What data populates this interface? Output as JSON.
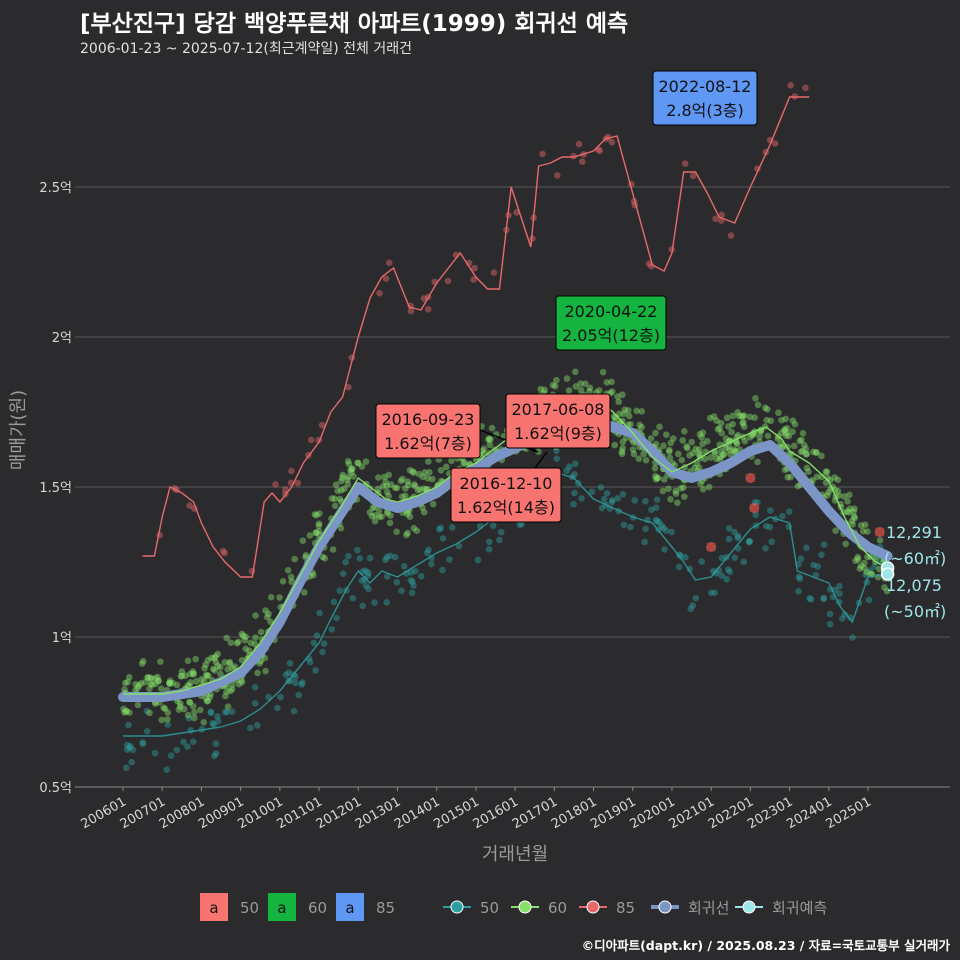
{
  "title": "[부산진구] 당감 백양푸른채 아파트(1999) 회귀선 예측",
  "subtitle": "2006-01-23 ~ 2025-07-12(최근계약일) 전체 거래건",
  "caption": "©디아파트(dapt.kr) / 2025.08.23 / 자료=국토교통부 실거래가",
  "colors": {
    "background": "#2b2b2d",
    "grid": "#5a5a5a",
    "s50": "#2e9fa0",
    "s60": "#86e06a",
    "s85": "#e8696b",
    "regression": "#7b96c6",
    "prediction": "#9fe6ea",
    "box50": "#f87471",
    "box60": "#15b33f",
    "box85": "#5f97f4"
  },
  "chart_data": {
    "type": "scatter",
    "xlabel": "거래년월",
    "ylabel": "매매가(원)",
    "x_ticks": [
      "200601",
      "200701",
      "200801",
      "200901",
      "201001",
      "201101",
      "201201",
      "201301",
      "201401",
      "201501",
      "201601",
      "201701",
      "201801",
      "201901",
      "202001",
      "202101",
      "202201",
      "202301",
      "202401",
      "202501"
    ],
    "y_ticks": [
      {
        "value": 0.5,
        "label": "0.5억"
      },
      {
        "value": 1,
        "label": "1억"
      },
      {
        "value": 1.5,
        "label": "1.5억"
      },
      {
        "value": 2,
        "label": "2억"
      },
      {
        "value": 2.5,
        "label": "2.5억"
      }
    ],
    "ylim": [
      0.5,
      2.8
    ],
    "xlim": [
      2006.0,
      2025.6
    ],
    "grid": true,
    "series": [
      {
        "name": "50",
        "color_key": "s50",
        "trend": [
          [
            2006.0,
            0.67
          ],
          [
            2007.0,
            0.67
          ],
          [
            2007.5,
            0.68
          ],
          [
            2008.0,
            0.69
          ],
          [
            2008.5,
            0.7
          ],
          [
            2009.0,
            0.72
          ],
          [
            2009.5,
            0.76
          ],
          [
            2010.0,
            0.82
          ],
          [
            2010.5,
            0.9
          ],
          [
            2011.0,
            0.98
          ],
          [
            2011.3,
            1.06
          ],
          [
            2011.7,
            1.16
          ],
          [
            2012.0,
            1.22
          ],
          [
            2012.3,
            1.18
          ],
          [
            2012.6,
            1.22
          ],
          [
            2013.0,
            1.2
          ],
          [
            2013.5,
            1.24
          ],
          [
            2014.0,
            1.28
          ],
          [
            2014.5,
            1.31
          ],
          [
            2015.0,
            1.35
          ],
          [
            2015.5,
            1.4
          ],
          [
            2016.0,
            1.45
          ],
          [
            2016.5,
            1.5
          ],
          [
            2017.0,
            1.55
          ],
          [
            2017.5,
            1.53
          ],
          [
            2018.0,
            1.46
          ],
          [
            2018.5,
            1.43
          ],
          [
            2019.0,
            1.4
          ],
          [
            2019.5,
            1.38
          ],
          [
            2020.0,
            1.3
          ],
          [
            2020.3,
            1.25
          ],
          [
            2020.6,
            1.19
          ],
          [
            2021.0,
            1.2
          ],
          [
            2021.5,
            1.28
          ],
          [
            2022.0,
            1.36
          ],
          [
            2022.5,
            1.4
          ],
          [
            2023.0,
            1.38
          ],
          [
            2023.2,
            1.22
          ],
          [
            2023.6,
            1.2
          ],
          [
            2024.0,
            1.18
          ],
          [
            2024.3,
            1.1
          ],
          [
            2024.6,
            1.05
          ],
          [
            2025.0,
            1.2
          ],
          [
            2025.5,
            1.21
          ]
        ]
      },
      {
        "name": "60",
        "color_key": "s60",
        "trend": [
          [
            2006.0,
            0.81
          ],
          [
            2007.0,
            0.81
          ],
          [
            2007.5,
            0.82
          ],
          [
            2008.0,
            0.84
          ],
          [
            2008.5,
            0.86
          ],
          [
            2009.0,
            0.9
          ],
          [
            2009.5,
            0.98
          ],
          [
            2010.0,
            1.08
          ],
          [
            2010.5,
            1.2
          ],
          [
            2011.0,
            1.32
          ],
          [
            2011.5,
            1.42
          ],
          [
            2012.0,
            1.53
          ],
          [
            2012.3,
            1.5
          ],
          [
            2012.7,
            1.46
          ],
          [
            2013.0,
            1.45
          ],
          [
            2013.5,
            1.47
          ],
          [
            2014.0,
            1.5
          ],
          [
            2014.5,
            1.55
          ],
          [
            2015.0,
            1.58
          ],
          [
            2015.5,
            1.63
          ],
          [
            2016.0,
            1.68
          ],
          [
            2016.5,
            1.72
          ],
          [
            2017.0,
            1.74
          ],
          [
            2017.5,
            1.78
          ],
          [
            2018.0,
            1.8
          ],
          [
            2018.5,
            1.75
          ],
          [
            2019.0,
            1.68
          ],
          [
            2019.5,
            1.6
          ],
          [
            2020.0,
            1.55
          ],
          [
            2020.5,
            1.58
          ],
          [
            2021.0,
            1.62
          ],
          [
            2021.5,
            1.65
          ],
          [
            2022.0,
            1.68
          ],
          [
            2022.4,
            1.7
          ],
          [
            2022.8,
            1.66
          ],
          [
            2023.0,
            1.62
          ],
          [
            2023.5,
            1.58
          ],
          [
            2024.0,
            1.52
          ],
          [
            2024.4,
            1.4
          ],
          [
            2024.8,
            1.3
          ],
          [
            2025.2,
            1.25
          ],
          [
            2025.5,
            1.23
          ]
        ]
      },
      {
        "name": "85",
        "color_key": "s85",
        "trend": [
          [
            2006.5,
            1.27
          ],
          [
            2006.8,
            1.27
          ],
          [
            2007.0,
            1.4
          ],
          [
            2007.2,
            1.5
          ],
          [
            2007.5,
            1.48
          ],
          [
            2007.8,
            1.45
          ],
          [
            2008.0,
            1.38
          ],
          [
            2008.3,
            1.3
          ],
          [
            2008.6,
            1.25
          ],
          [
            2009.0,
            1.2
          ],
          [
            2009.3,
            1.2
          ],
          [
            2009.6,
            1.45
          ],
          [
            2009.8,
            1.48
          ],
          [
            2010.0,
            1.45
          ],
          [
            2010.3,
            1.5
          ],
          [
            2010.6,
            1.58
          ],
          [
            2011.0,
            1.65
          ],
          [
            2011.3,
            1.75
          ],
          [
            2011.6,
            1.8
          ],
          [
            2012.0,
            2.0
          ],
          [
            2012.3,
            2.13
          ],
          [
            2012.6,
            2.2
          ],
          [
            2012.9,
            2.23
          ],
          [
            2013.3,
            2.1
          ],
          [
            2013.6,
            2.09
          ],
          [
            2014.0,
            2.18
          ],
          [
            2014.3,
            2.23
          ],
          [
            2014.6,
            2.28
          ],
          [
            2015.0,
            2.2
          ],
          [
            2015.3,
            2.16
          ],
          [
            2015.6,
            2.16
          ],
          [
            2015.9,
            2.5
          ],
          [
            2016.1,
            2.42
          ],
          [
            2016.4,
            2.3
          ],
          [
            2016.6,
            2.57
          ],
          [
            2016.9,
            2.58
          ],
          [
            2017.2,
            2.6
          ],
          [
            2017.5,
            2.6
          ],
          [
            2018.0,
            2.62
          ],
          [
            2018.3,
            2.66
          ],
          [
            2018.6,
            2.67
          ],
          [
            2019.5,
            2.24
          ],
          [
            2019.8,
            2.22
          ],
          [
            2020.0,
            2.28
          ],
          [
            2020.3,
            2.55
          ],
          [
            2020.6,
            2.55
          ],
          [
            2020.9,
            2.48
          ],
          [
            2021.2,
            2.4
          ],
          [
            2021.6,
            2.38
          ],
          [
            2022.0,
            2.5
          ],
          [
            2022.5,
            2.64
          ],
          [
            2023.0,
            2.8
          ],
          [
            2023.5,
            2.8
          ]
        ]
      }
    ],
    "regression": [
      [
        2006.0,
        0.8
      ],
      [
        2007.0,
        0.8
      ],
      [
        2008.0,
        0.82
      ],
      [
        2009.0,
        0.88
      ],
      [
        2009.5,
        0.95
      ],
      [
        2010.0,
        1.05
      ],
      [
        2010.5,
        1.18
      ],
      [
        2011.0,
        1.3
      ],
      [
        2011.5,
        1.4
      ],
      [
        2012.0,
        1.5
      ],
      [
        2012.5,
        1.45
      ],
      [
        2013.0,
        1.43
      ],
      [
        2013.5,
        1.45
      ],
      [
        2014.0,
        1.48
      ],
      [
        2014.5,
        1.53
      ],
      [
        2015.0,
        1.56
      ],
      [
        2015.5,
        1.6
      ],
      [
        2016.0,
        1.63
      ],
      [
        2016.5,
        1.66
      ],
      [
        2017.0,
        1.68
      ],
      [
        2017.5,
        1.7
      ],
      [
        2018.0,
        1.72
      ],
      [
        2018.5,
        1.7
      ],
      [
        2019.0,
        1.68
      ],
      [
        2019.5,
        1.62
      ],
      [
        2020.0,
        1.55
      ],
      [
        2020.5,
        1.53
      ],
      [
        2021.0,
        1.55
      ],
      [
        2021.5,
        1.58
      ],
      [
        2022.0,
        1.62
      ],
      [
        2022.5,
        1.64
      ],
      [
        2023.0,
        1.58
      ],
      [
        2023.5,
        1.5
      ],
      [
        2024.0,
        1.42
      ],
      [
        2024.5,
        1.35
      ],
      [
        2025.0,
        1.3
      ],
      [
        2025.5,
        1.27
      ]
    ],
    "predictions": [
      {
        "value_line1": "12,291",
        "value_line2": "(~60㎡)",
        "x": 2025.5,
        "y": 1.23
      },
      {
        "value_line1": "12,075",
        "value_line2": "(~50㎡)",
        "x": 2025.5,
        "y": 1.21
      }
    ],
    "annotations": [
      {
        "date": "2022-08-12",
        "price": "2.8억(3층)",
        "box": "box85",
        "x": 2022.6,
        "y": 2.8
      },
      {
        "date": "2020-04-22",
        "price": "2.05억(12층)",
        "box": "box60",
        "x": 2020.3,
        "y": 2.05
      },
      {
        "date": "2016-09-23",
        "price": "1.62억(7층)",
        "box": "box50",
        "x": 2016.7,
        "y": 1.62
      },
      {
        "date": "2017-06-08",
        "price": "1.62억(9층)",
        "box": "box50",
        "x": 2017.4,
        "y": 1.62
      },
      {
        "date": "2016-12-10",
        "price": "1.62억(14층)",
        "box": "box50",
        "x": 2016.9,
        "y": 1.62
      }
    ],
    "outliers": [
      [
        2021.0,
        1.3
      ],
      [
        2022.0,
        1.53
      ],
      [
        2022.1,
        1.43
      ],
      [
        2025.3,
        1.35
      ]
    ],
    "legend_label_boxes": {
      "items": [
        {
          "glyph": "a",
          "label": "50",
          "box": "box50"
        },
        {
          "glyph": "a",
          "label": "60",
          "box": "box60"
        },
        {
          "glyph": "a",
          "label": "85",
          "box": "box85"
        }
      ]
    },
    "legend_lines": {
      "items": [
        {
          "label": "50",
          "color_key": "s50"
        },
        {
          "label": "60",
          "color_key": "s60"
        },
        {
          "label": "85",
          "color_key": "s85"
        },
        {
          "label": "회귀선",
          "color_key": "regression"
        },
        {
          "label": "회귀예측",
          "color_key": "prediction"
        }
      ]
    },
    "legend_position": "bottom"
  }
}
